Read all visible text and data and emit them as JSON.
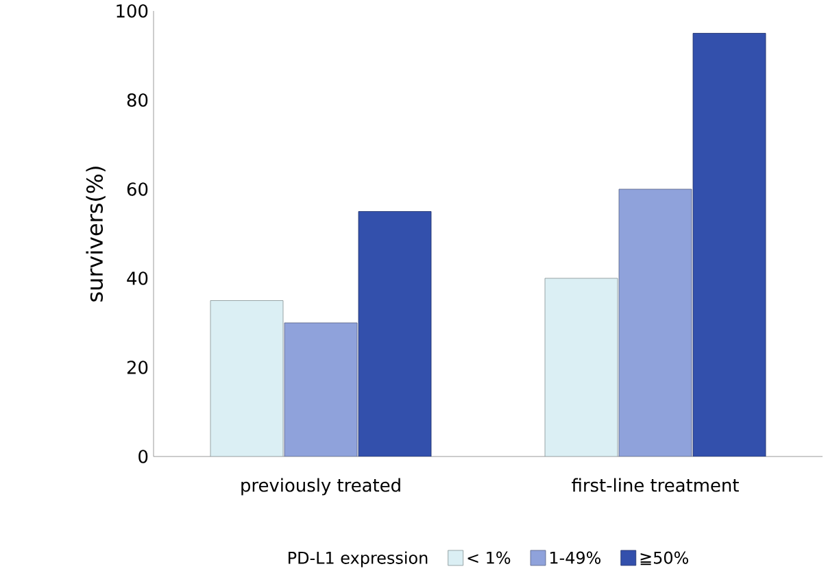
{
  "chart_data": {
    "type": "bar",
    "ylabel": "survivers(%)",
    "legend_title": "PD-L1 expression",
    "categories": [
      "previously treated",
      "first-line treatment"
    ],
    "series": [
      {
        "name": "< 1%",
        "color": "#dbeff4",
        "values": [
          35,
          40
        ]
      },
      {
        "name": "1-49%",
        "color": "#8fa2db",
        "values": [
          30,
          60
        ]
      },
      {
        "name": "≧50%",
        "color": "#3350ac",
        "values": [
          55,
          95
        ]
      }
    ],
    "ylim": [
      0,
      100
    ],
    "yticks": [
      0,
      20,
      40,
      60,
      80,
      100
    ],
    "legend": "bottom"
  }
}
